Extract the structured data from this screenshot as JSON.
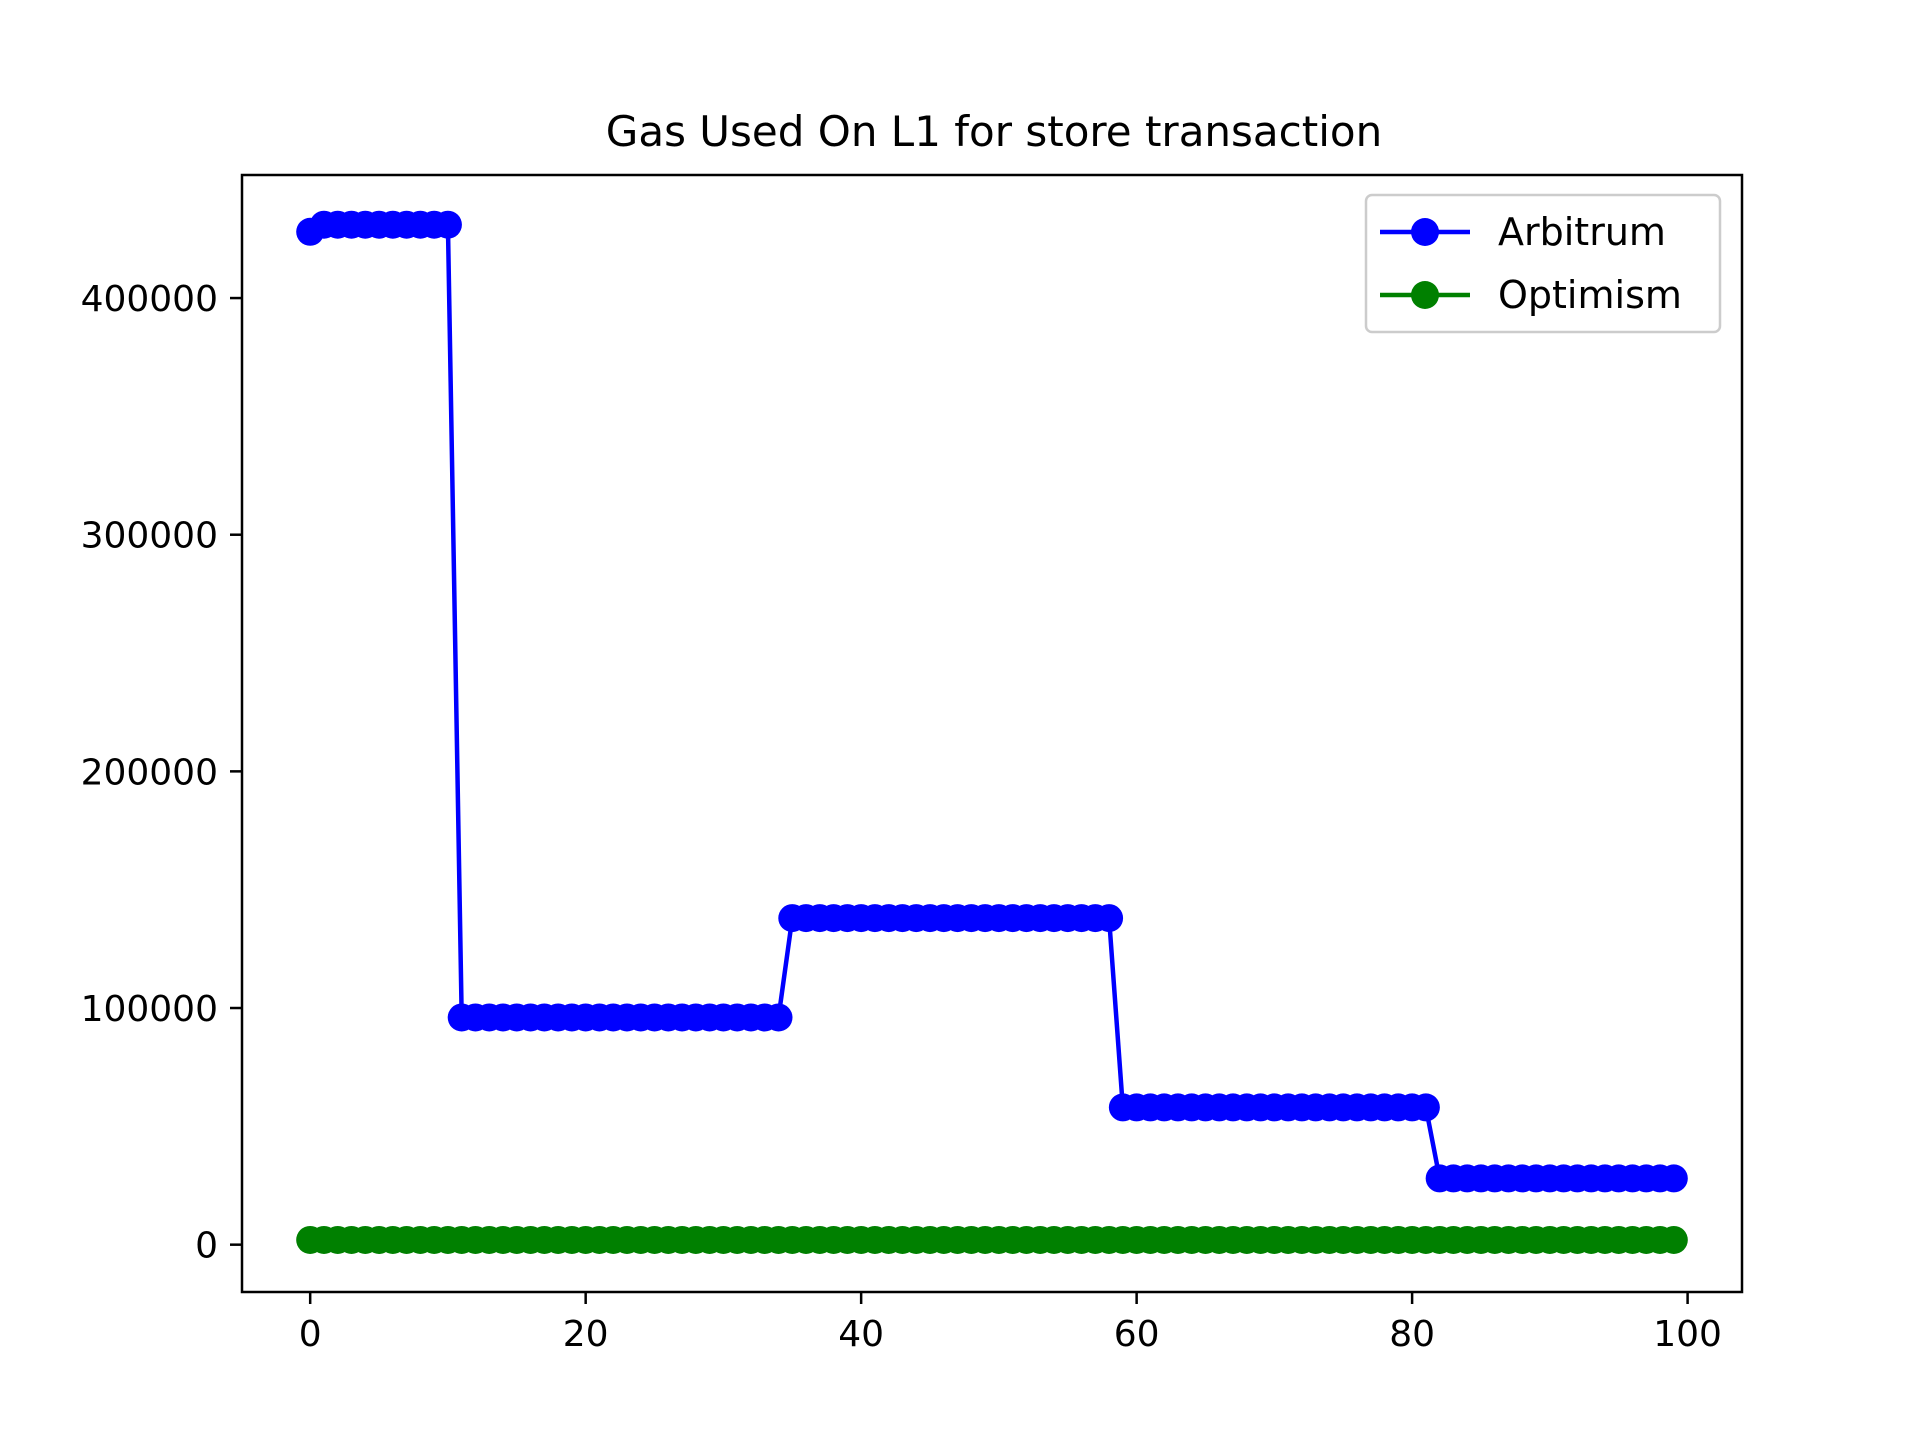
{
  "chart_data": {
    "type": "line",
    "title": "Gas Used On L1 for store transaction",
    "xlabel": "",
    "ylabel": "",
    "xlim": [
      -4.95,
      103.95
    ],
    "ylim": [
      -20000,
      452000
    ],
    "xticks": [
      0,
      20,
      40,
      60,
      80,
      100
    ],
    "yticks": [
      0,
      100000,
      200000,
      300000,
      400000
    ],
    "grid": false,
    "legend_position": "upper right",
    "series": [
      {
        "name": "Arbitrum",
        "color": "#0000ff",
        "marker": "circle",
        "segments": [
          {
            "x_start": 0,
            "x_end": 0,
            "value": 428000
          },
          {
            "x_start": 1,
            "x_end": 10,
            "value": 431000
          },
          {
            "x_start": 11,
            "x_end": 34,
            "value": 96000
          },
          {
            "x_start": 35,
            "x_end": 58,
            "value": 138000
          },
          {
            "x_start": 59,
            "x_end": 81,
            "value": 58000
          },
          {
            "x_start": 82,
            "x_end": 99,
            "value": 28000
          }
        ]
      },
      {
        "name": "Optimism",
        "color": "#008000",
        "marker": "circle",
        "segments": [
          {
            "x_start": 0,
            "x_end": 99,
            "value": 2000
          }
        ]
      }
    ]
  }
}
